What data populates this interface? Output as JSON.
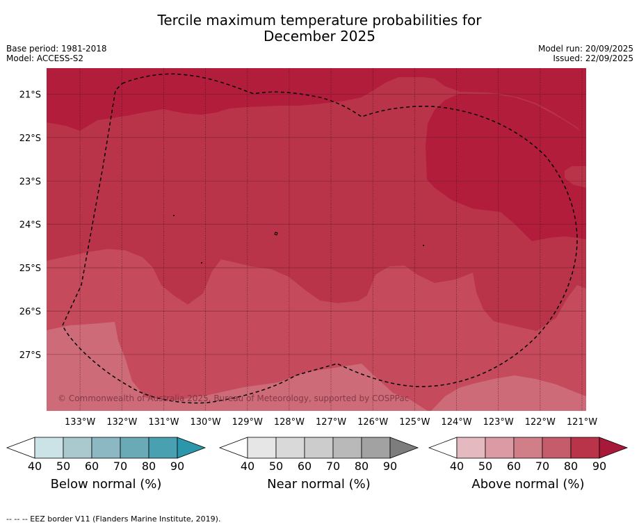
{
  "header": {
    "title_line1": "Tercile maximum temperature probabilities for",
    "title_line2": "December 2025",
    "base_period": "Base period: 1981-2018",
    "model": "Model: ACCESS-S2",
    "model_run": "Model run: 20/09/2025",
    "issued": "Issued: 22/09/2025"
  },
  "map": {
    "copyright": "© Commonwealth of Australia 2025, Bureau of Meteorology, supported by COSPPac",
    "lat_labels": [
      "21°S",
      "22°S",
      "23°S",
      "24°S",
      "25°S",
      "26°S",
      "27°S"
    ],
    "lon_labels": [
      "133°W",
      "132°W",
      "131°W",
      "130°W",
      "129°W",
      "128°W",
      "127°W",
      "126°W",
      "125°W",
      "124°W",
      "123°W",
      "122°W",
      "121°W"
    ],
    "lat_values": [
      -21,
      -22,
      -23,
      -24,
      -25,
      -26,
      -27
    ],
    "lon_values": [
      -133,
      -132,
      -131,
      -130,
      -129,
      -128,
      -127,
      -126,
      -125,
      -124,
      -123,
      -122,
      -121
    ],
    "lat_range": [
      -28.3,
      -20.4
    ],
    "lon_range": [
      -133.8,
      -120.9
    ],
    "boundary_style": "dashed",
    "colors": {
      "above_90": "#b21d3c",
      "above_80": "#b93349",
      "above_70": "#c44a5c",
      "above_60": "#cd6c78"
    }
  },
  "colorbars": [
    {
      "name": "below",
      "title": "Below normal (%)",
      "ticks": [
        "40",
        "50",
        "60",
        "70",
        "80",
        "90"
      ],
      "colors": [
        "#ffffff",
        "#cbe2e7",
        "#aac9cf",
        "#8cb8c3",
        "#6aa9b6",
        "#48a0b0",
        "#2c97aa"
      ]
    },
    {
      "name": "near",
      "title": "Near normal (%)",
      "ticks": [
        "40",
        "50",
        "60",
        "70",
        "80",
        "90"
      ],
      "colors": [
        "#ffffff",
        "#e6e6e6",
        "#d9d9d9",
        "#cccccc",
        "#b9b9b9",
        "#a2a2a2",
        "#7d7d7d"
      ]
    },
    {
      "name": "above",
      "title": "Above normal (%)",
      "ticks": [
        "40",
        "50",
        "60",
        "70",
        "80",
        "90"
      ],
      "colors": [
        "#ffffff",
        "#e4b9c0",
        "#dc9ba4",
        "#d07e88",
        "#c55c6b",
        "#b93349",
        "#a81839"
      ]
    }
  ],
  "footnote": "--  --  -- EEZ border V11 (Flanders Marine Institute, 2019)."
}
